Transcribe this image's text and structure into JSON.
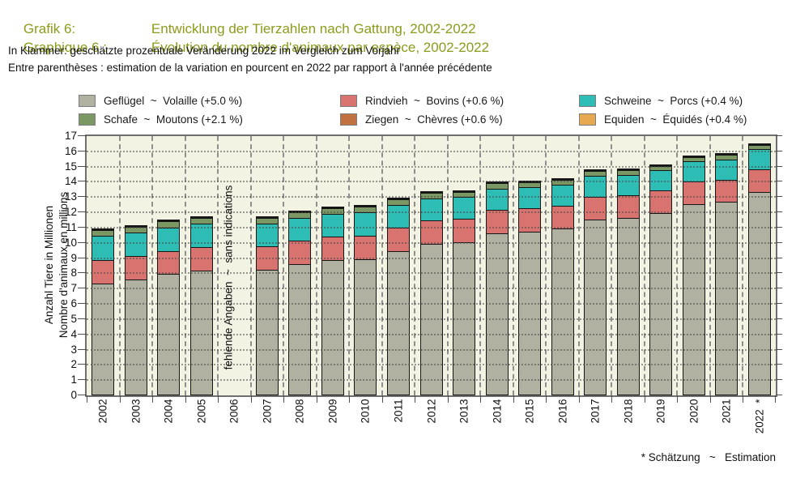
{
  "header": {
    "title_de_label": "Grafik 6:",
    "title_de": "Entwicklung der Tierzahlen nach Gattung, 2002-2022",
    "title_fr_label": "Graphique 6 :",
    "title_fr": "Évolution du nombre d'animaux par espèce, 2002-2022",
    "subtitle_de": "In Klammer: geschätzte prozentuale Veränderung 2022 im Vergleich zum Vorjahr",
    "subtitle_fr": "Entre parenthèses : estimation de la variation en pourcent en 2022 par rapport à l'année précédente",
    "title_color": "#8d9b1b"
  },
  "legend": {
    "items": [
      {
        "label": "Geflügel  ~  Volaille (+5.0 %)",
        "color": "#b1b1a2"
      },
      {
        "label": "Rindvieh  ~  Bovins (+0.6 %)",
        "color": "#d8736f"
      },
      {
        "label": "Schweine  ~  Porcs (+0.4 %)",
        "color": "#2ebdb4"
      },
      {
        "label": "Schafe  ~  Moutons (+2.1 %)",
        "color": "#7b9763"
      },
      {
        "label": "Ziegen  ~  Chèvres (+0.6 %)",
        "color": "#c1703f"
      },
      {
        "label": "Equiden  ~  Équidés (+0.4 %)",
        "color": "#e7a94f"
      }
    ]
  },
  "chart_data": {
    "type": "bar",
    "stacked": true,
    "ylabel_de": "Anzahl Tiere in Millionen",
    "ylabel_fr": "Nombre d'animaux en millions",
    "ylim": [
      0,
      17
    ],
    "ytick_step": 1,
    "grid": true,
    "legend_position": "top",
    "background": "#f3f3e3",
    "categories": [
      "2002",
      "2003",
      "2004",
      "2005",
      "2006",
      "2007",
      "2008",
      "2009",
      "2010",
      "2011",
      "2012",
      "2013",
      "2014",
      "2015",
      "2016",
      "2017",
      "2018",
      "2019",
      "2020",
      "2021",
      "2022"
    ],
    "series": [
      {
        "name": "Geflügel ~ Volaille",
        "color": "#b1b1a2",
        "values": [
          7.35,
          7.6,
          7.95,
          8.2,
          null,
          8.25,
          8.6,
          8.85,
          8.95,
          9.45,
          9.95,
          10.05,
          10.65,
          10.75,
          10.95,
          11.55,
          11.65,
          11.95,
          12.55,
          12.7,
          13.35
        ]
      },
      {
        "name": "Rindvieh ~ Bovins",
        "color": "#d8736f",
        "values": [
          1.59,
          1.57,
          1.56,
          1.55,
          null,
          1.57,
          1.6,
          1.6,
          1.59,
          1.58,
          1.56,
          1.56,
          1.56,
          1.55,
          1.55,
          1.54,
          1.53,
          1.52,
          1.51,
          1.51,
          1.52
        ]
      },
      {
        "name": "Schweine ~ Porcs",
        "color": "#2ebdb4",
        "values": [
          1.62,
          1.61,
          1.62,
          1.61,
          null,
          1.54,
          1.52,
          1.55,
          1.59,
          1.57,
          1.52,
          1.5,
          1.47,
          1.45,
          1.4,
          1.42,
          1.4,
          1.38,
          1.38,
          1.37,
          1.38
        ]
      },
      {
        "name": "Schafe ~ Moutons",
        "color": "#7b9763",
        "values": [
          0.42,
          0.44,
          0.44,
          0.45,
          null,
          0.44,
          0.44,
          0.43,
          0.43,
          0.42,
          0.41,
          0.41,
          0.4,
          0.38,
          0.37,
          0.37,
          0.36,
          0.35,
          0.34,
          0.34,
          0.35
        ]
      },
      {
        "name": "Ziegen ~ Chèvres",
        "color": "#c1703f",
        "values": [
          0.06,
          0.07,
          0.07,
          0.07,
          null,
          0.08,
          0.08,
          0.08,
          0.09,
          0.09,
          0.09,
          0.09,
          0.09,
          0.09,
          0.09,
          0.09,
          0.08,
          0.08,
          0.08,
          0.08,
          0.08
        ]
      },
      {
        "name": "Equiden ~ Équidés",
        "color": "#e7a94f",
        "values": [
          0.05,
          0.05,
          0.06,
          0.06,
          null,
          0.06,
          0.06,
          0.07,
          0.07,
          0.07,
          0.08,
          0.08,
          0.08,
          0.08,
          0.08,
          0.08,
          0.08,
          0.08,
          0.08,
          0.08,
          0.08
        ]
      }
    ],
    "missing_year": "2006",
    "missing_note": "fehlende Angaben  ~  sans indications",
    "estimated_year": "2022",
    "estimated_marker": "*",
    "footnote": "* Schätzung   ~   Estimation"
  }
}
